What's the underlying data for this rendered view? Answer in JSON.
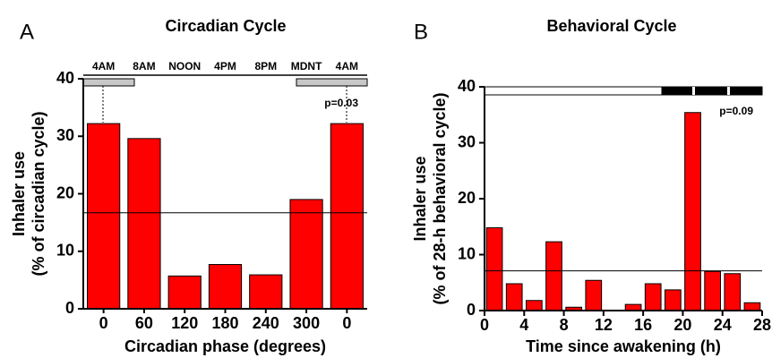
{
  "chart_data": [
    {
      "type": "bar",
      "panel": "A",
      "title": "Circadian Cycle",
      "categories": [
        "0",
        "60",
        "120",
        "180",
        "240",
        "300",
        "0"
      ],
      "top_labels": [
        "4AM",
        "8AM",
        "NOON",
        "4PM",
        "8PM",
        "MDNT",
        "4AM"
      ],
      "values": [
        32.2,
        29.6,
        5.7,
        7.7,
        5.9,
        19.0,
        32.2
      ],
      "color": "#ff0000",
      "ylim": [
        0,
        40
      ],
      "yticks": [
        0,
        10,
        20,
        30,
        40
      ],
      "reference_line": 16.7,
      "annotation": "p=0.03",
      "ylabel": [
        "Inhaler use",
        "(% of circadian cycle)"
      ],
      "xlabel": "Circadian phase (degrees)"
    },
    {
      "type": "histogram",
      "panel": "B",
      "title": "Behavioral Cycle",
      "x": [
        1,
        3,
        5,
        7,
        9,
        11,
        13,
        15,
        17,
        19,
        21,
        23,
        25,
        27
      ],
      "values": [
        14.8,
        4.8,
        1.8,
        12.3,
        0.6,
        5.4,
        0,
        1.1,
        4.8,
        3.7,
        35.4,
        7.0,
        6.6,
        1.4
      ],
      "color": "#ff0000",
      "xlim": [
        0,
        28
      ],
      "xticks": [
        0,
        4,
        8,
        12,
        16,
        20,
        24,
        28
      ],
      "ylim": [
        0,
        40
      ],
      "yticks": [
        0,
        10,
        20,
        30,
        40
      ],
      "reference_line": 7.1,
      "annotation": "p=0.09",
      "ylabel": [
        "Inhaler use",
        "(% of 28-h behavioral cycle)"
      ],
      "xlabel": "Time since awakening (h)"
    }
  ]
}
